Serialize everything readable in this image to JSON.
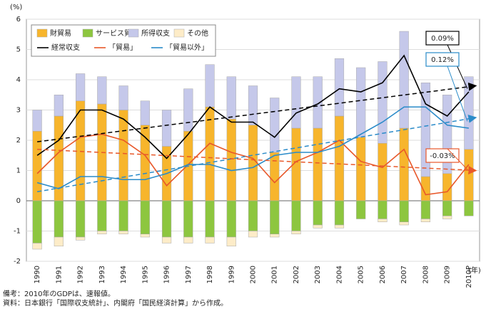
{
  "chart_data": {
    "type": "bar",
    "y_unit_label": "(%)",
    "x_unit_label": "(年)",
    "categories": [
      "1990",
      "1991",
      "1992",
      "1993",
      "1994",
      "1995",
      "1996",
      "1997",
      "1998",
      "1999",
      "2000",
      "2001",
      "2002",
      "2003",
      "2004",
      "2005",
      "2006",
      "2007",
      "2008",
      "2009",
      "2010P"
    ],
    "bar_series": [
      {
        "name": "財貿易",
        "color": "#f7b52c",
        "values": [
          2.3,
          2.8,
          3.3,
          3.2,
          3.0,
          2.5,
          1.8,
          2.3,
          3.1,
          2.7,
          2.5,
          1.6,
          2.4,
          2.4,
          2.8,
          2.1,
          1.9,
          2.4,
          0.8,
          0.9,
          1.7
        ]
      },
      {
        "name": "サービス貿易",
        "color": "#8dc63f",
        "values": [
          -1.4,
          -1.2,
          -1.2,
          -1.0,
          -1.0,
          -1.1,
          -1.2,
          -1.2,
          -1.2,
          -1.2,
          -1.0,
          -1.1,
          -1.0,
          -0.8,
          -0.8,
          -0.6,
          -0.6,
          -0.7,
          -0.6,
          -0.5,
          -0.5
        ]
      },
      {
        "name": "所得収支",
        "color": "#c5c8ea",
        "values": [
          0.7,
          0.7,
          0.9,
          0.9,
          0.8,
          0.8,
          1.2,
          1.4,
          1.4,
          1.4,
          1.3,
          1.8,
          1.7,
          1.7,
          1.9,
          2.3,
          2.7,
          3.2,
          3.1,
          2.6,
          2.4
        ]
      },
      {
        "name": "その他",
        "color": "#fdecc8",
        "values": [
          -0.2,
          -0.3,
          -0.1,
          -0.1,
          -0.1,
          -0.1,
          -0.2,
          -0.2,
          -0.2,
          -0.3,
          -0.2,
          -0.1,
          -0.1,
          -0.1,
          -0.1,
          0,
          -0.1,
          -0.1,
          -0.1,
          -0.1,
          0
        ]
      }
    ],
    "line_series": [
      {
        "name": "経常収支",
        "color": "#000000",
        "values": [
          1.5,
          2.0,
          3.0,
          3.0,
          2.7,
          2.1,
          1.4,
          2.2,
          3.1,
          2.6,
          2.6,
          2.1,
          2.9,
          3.2,
          3.7,
          3.6,
          3.9,
          4.8,
          3.2,
          2.8,
          3.6
        ]
      },
      {
        "name": "「貿易」",
        "color": "#e8582a",
        "values": [
          0.9,
          1.6,
          2.1,
          2.2,
          2.0,
          1.5,
          0.5,
          1.2,
          1.9,
          1.6,
          1.4,
          0.6,
          1.3,
          1.6,
          2.0,
          1.3,
          1.1,
          1.7,
          0.2,
          0.3,
          1.2
        ]
      },
      {
        "name": "「貿易以外」",
        "color": "#2a8bc9",
        "values": [
          0.6,
          0.4,
          0.8,
          0.8,
          0.7,
          0.7,
          0.9,
          1.2,
          1.2,
          1.0,
          1.1,
          1.5,
          1.6,
          1.6,
          1.8,
          2.2,
          2.6,
          3.1,
          3.1,
          2.5,
          2.4
        ]
      }
    ],
    "trends": [
      {
        "label": "0.09%",
        "color": "#000000",
        "values": [
          1.95,
          3.8
        ]
      },
      {
        "label": "0.12%",
        "color": "#2a8bc9",
        "values": [
          0.3,
          2.75
        ]
      },
      {
        "label": "-0.03%",
        "color": "#e8582a",
        "values": [
          1.7,
          1.0
        ]
      }
    ],
    "ylim": [
      -2,
      6
    ],
    "yticks": [
      -2,
      -1,
      0,
      1,
      2,
      3,
      4,
      5,
      6
    ],
    "grid": true,
    "notes": [
      "備考：2010年のGDPは、速報値。",
      "資料：日本銀行「国際収支統計」、内閣府「国民経済計算」から作成。"
    ]
  }
}
